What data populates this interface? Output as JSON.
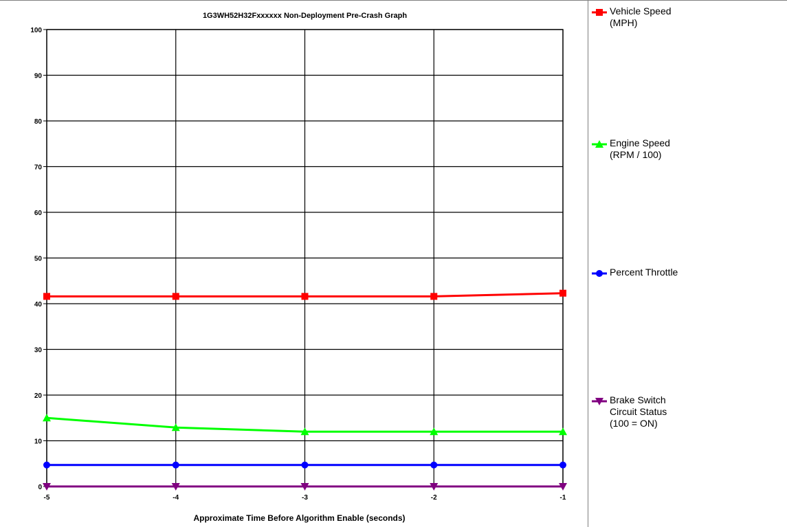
{
  "chart_data": {
    "type": "line",
    "title": "1G3WH52H32Fxxxxxx Non-Deployment Pre-Crash Graph",
    "xlabel": "Approximate Time Before Algorithm Enable (seconds)",
    "ylabel": "",
    "x": [
      -5,
      -4,
      -3,
      -2,
      -1
    ],
    "x_tick_labels": [
      "-5",
      "-4",
      "-3",
      "-2",
      "-1"
    ],
    "ylim": [
      0,
      100
    ],
    "y_tick_labels": [
      "0",
      "10",
      "20",
      "30",
      "40",
      "50",
      "60",
      "70",
      "80",
      "90",
      "100"
    ],
    "grid": true,
    "legend_position": "right",
    "series": [
      {
        "name_lines": [
          "Vehicle Speed",
          "(MPH)"
        ],
        "color": "#ff0000",
        "marker": "square",
        "values": [
          41.6,
          41.6,
          41.6,
          41.6,
          42.3
        ]
      },
      {
        "name_lines": [
          "Engine Speed",
          "(RPM / 100)"
        ],
        "color": "#00ff00",
        "marker": "triangle-up",
        "values": [
          15.0,
          12.9,
          12.0,
          12.0,
          12.0
        ]
      },
      {
        "name_lines": [
          "Percent Throttle"
        ],
        "color": "#0000ff",
        "marker": "circle",
        "values": [
          4.7,
          4.7,
          4.7,
          4.7,
          4.7
        ]
      },
      {
        "name_lines": [
          "Brake Switch",
          "Circuit Status",
          "(100 = ON)"
        ],
        "color": "#800080",
        "marker": "triangle-down",
        "values": [
          0,
          0,
          0,
          0,
          0
        ]
      }
    ]
  }
}
